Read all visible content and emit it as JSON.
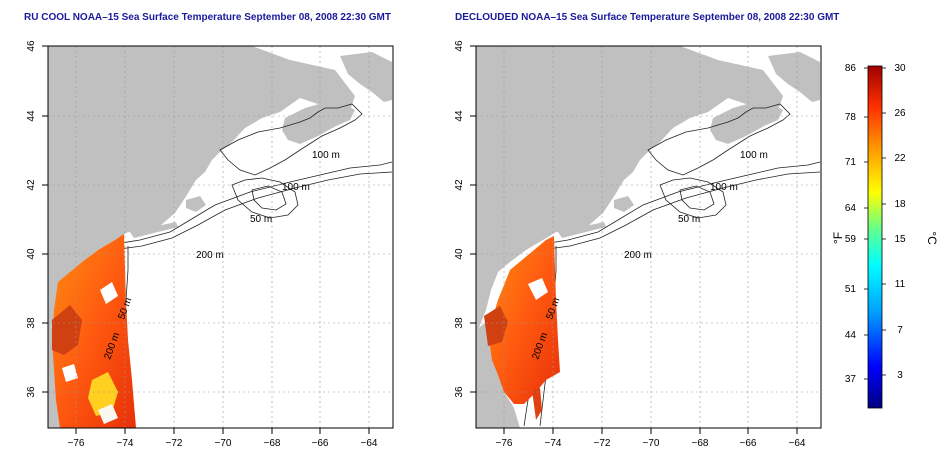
{
  "panels": [
    {
      "title": "RU COOL NOAA–15 Sea Surface Temperature September 08, 2008 22:30 GMT"
    },
    {
      "title": "DECLOUDED NOAA–15 Sea Surface Temperature September 08, 2008 22:30 GMT"
    }
  ],
  "axes": {
    "lat_ticks": [
      "46",
      "44",
      "42",
      "40",
      "38",
      "36"
    ],
    "lon_ticks": [
      "−76",
      "−74",
      "−72",
      "−70",
      "−68",
      "−66",
      "−64"
    ]
  },
  "contour_labels": [
    "100 m",
    "100 m",
    "50 m",
    "200 m",
    "200 m",
    "50 m"
  ],
  "colorbar": {
    "unit_f": "°F",
    "unit_c": "°C",
    "f_ticks": [
      "86",
      "78",
      "71",
      "64",
      "59",
      "51",
      "44",
      "37"
    ],
    "c_ticks": [
      "30",
      "26",
      "22",
      "18",
      "15",
      "11",
      "7",
      "3"
    ],
    "colors": [
      "#000080",
      "#0000ff",
      "#00a0ff",
      "#00ffff",
      "#60ff90",
      "#ffff00",
      "#ffa000",
      "#ff3000",
      "#a00000"
    ]
  },
  "colors": {
    "land": "#c0c0c0",
    "title": "#1a1a9c"
  }
}
